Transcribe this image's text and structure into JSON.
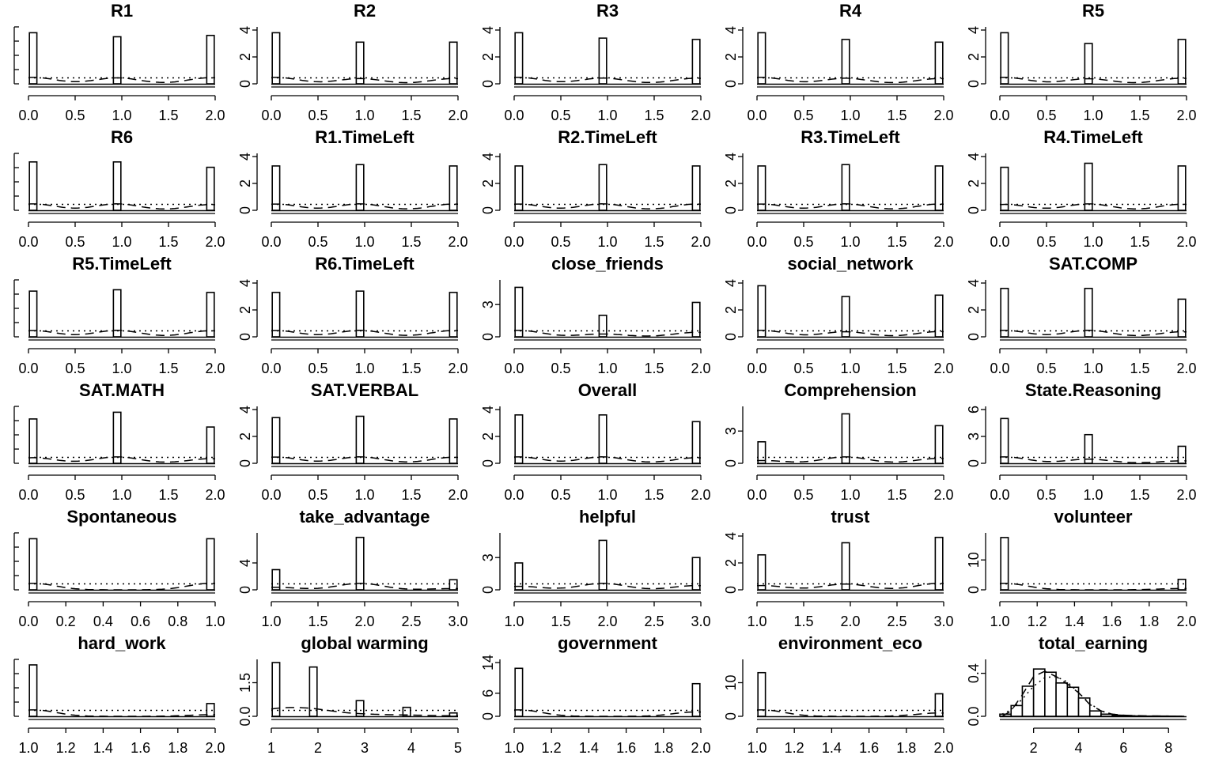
{
  "chart_data": [
    {
      "type": "histogram",
      "title": "R1",
      "x_ticks": [
        "0.0",
        "0.5",
        "1.0",
        "1.5",
        "2.0"
      ],
      "y_ticks": [],
      "xlim": [
        0,
        2
      ],
      "ylim": [
        0,
        4
      ],
      "bars": [
        {
          "x": 0.05,
          "h": 3.8
        },
        {
          "x": 0.95,
          "h": 3.5
        },
        {
          "x": 1.95,
          "h": 3.6
        }
      ]
    },
    {
      "type": "histogram",
      "title": "R2",
      "x_ticks": [
        "0.0",
        "0.5",
        "1.0",
        "1.5",
        "2.0"
      ],
      "y_ticks": [
        "0",
        "2",
        "4"
      ],
      "xlim": [
        0,
        2
      ],
      "ylim": [
        0,
        4
      ],
      "bars": [
        {
          "x": 0.05,
          "h": 3.8
        },
        {
          "x": 0.95,
          "h": 3.1
        },
        {
          "x": 1.95,
          "h": 3.1
        }
      ]
    },
    {
      "type": "histogram",
      "title": "R3",
      "x_ticks": [
        "0.0",
        "0.5",
        "1.0",
        "1.5",
        "2.0"
      ],
      "y_ticks": [
        "0",
        "2",
        "4"
      ],
      "xlim": [
        0,
        2
      ],
      "ylim": [
        0,
        4
      ],
      "bars": [
        {
          "x": 0.05,
          "h": 3.8
        },
        {
          "x": 0.95,
          "h": 3.4
        },
        {
          "x": 1.95,
          "h": 3.3
        }
      ]
    },
    {
      "type": "histogram",
      "title": "R4",
      "x_ticks": [
        "0.0",
        "0.5",
        "1.0",
        "1.5",
        "2.0"
      ],
      "y_ticks": [
        "0",
        "2",
        "4"
      ],
      "xlim": [
        0,
        2
      ],
      "ylim": [
        0,
        4
      ],
      "bars": [
        {
          "x": 0.05,
          "h": 3.8
        },
        {
          "x": 0.95,
          "h": 3.3
        },
        {
          "x": 1.95,
          "h": 3.1
        }
      ]
    },
    {
      "type": "histogram",
      "title": "R5",
      "x_ticks": [
        "0.0",
        "0.5",
        "1.0",
        "1.5",
        "2.0"
      ],
      "y_ticks": [
        "0",
        "2",
        "4"
      ],
      "xlim": [
        0,
        2
      ],
      "ylim": [
        0,
        4
      ],
      "bars": [
        {
          "x": 0.05,
          "h": 3.8
        },
        {
          "x": 0.95,
          "h": 3.0
        },
        {
          "x": 1.95,
          "h": 3.3
        }
      ]
    },
    {
      "type": "histogram",
      "title": "R6",
      "x_ticks": [
        "0.0",
        "0.5",
        "1.0",
        "1.5",
        "2.0"
      ],
      "y_ticks": [],
      "xlim": [
        0,
        2
      ],
      "ylim": [
        0,
        4
      ],
      "bars": [
        {
          "x": 0.05,
          "h": 3.6
        },
        {
          "x": 0.95,
          "h": 3.6
        },
        {
          "x": 1.95,
          "h": 3.2
        }
      ]
    },
    {
      "type": "histogram",
      "title": "R1.TimeLeft",
      "x_ticks": [
        "0.0",
        "0.5",
        "1.0",
        "1.5",
        "2.0"
      ],
      "y_ticks": [
        "0",
        "2",
        "4"
      ],
      "xlim": [
        0,
        2
      ],
      "ylim": [
        0,
        4
      ],
      "bars": [
        {
          "x": 0.05,
          "h": 3.3
        },
        {
          "x": 0.95,
          "h": 3.4
        },
        {
          "x": 1.95,
          "h": 3.3
        }
      ]
    },
    {
      "type": "histogram",
      "title": "R2.TimeLeft",
      "x_ticks": [
        "0.0",
        "0.5",
        "1.0",
        "1.5",
        "2.0"
      ],
      "y_ticks": [
        "0",
        "2",
        "4"
      ],
      "xlim": [
        0,
        2
      ],
      "ylim": [
        0,
        4
      ],
      "bars": [
        {
          "x": 0.05,
          "h": 3.3
        },
        {
          "x": 0.95,
          "h": 3.4
        },
        {
          "x": 1.95,
          "h": 3.3
        }
      ]
    },
    {
      "type": "histogram",
      "title": "R3.TimeLeft",
      "x_ticks": [
        "0.0",
        "0.5",
        "1.0",
        "1.5",
        "2.0"
      ],
      "y_ticks": [
        "0",
        "2",
        "4"
      ],
      "xlim": [
        0,
        2
      ],
      "ylim": [
        0,
        4
      ],
      "bars": [
        {
          "x": 0.05,
          "h": 3.3
        },
        {
          "x": 0.95,
          "h": 3.4
        },
        {
          "x": 1.95,
          "h": 3.3
        }
      ]
    },
    {
      "type": "histogram",
      "title": "R4.TimeLeft",
      "x_ticks": [
        "0.0",
        "0.5",
        "1.0",
        "1.5",
        "2.0"
      ],
      "y_ticks": [
        "0",
        "2",
        "4"
      ],
      "xlim": [
        0,
        2
      ],
      "ylim": [
        0,
        4
      ],
      "bars": [
        {
          "x": 0.05,
          "h": 3.2
        },
        {
          "x": 0.95,
          "h": 3.5
        },
        {
          "x": 1.95,
          "h": 3.3
        }
      ]
    },
    {
      "type": "histogram",
      "title": "R5.TimeLeft",
      "x_ticks": [
        "0.0",
        "0.5",
        "1.0",
        "1.5",
        "2.0"
      ],
      "y_ticks": [],
      "xlim": [
        0,
        2
      ],
      "ylim": [
        0,
        4
      ],
      "bars": [
        {
          "x": 0.05,
          "h": 3.4
        },
        {
          "x": 0.95,
          "h": 3.5
        },
        {
          "x": 1.95,
          "h": 3.3
        }
      ]
    },
    {
      "type": "histogram",
      "title": "R6.TimeLeft",
      "x_ticks": [
        "0.0",
        "0.5",
        "1.0",
        "1.5",
        "2.0"
      ],
      "y_ticks": [
        "0",
        "2",
        "4"
      ],
      "xlim": [
        0,
        2
      ],
      "ylim": [
        0,
        4
      ],
      "bars": [
        {
          "x": 0.05,
          "h": 3.3
        },
        {
          "x": 0.95,
          "h": 3.4
        },
        {
          "x": 1.95,
          "h": 3.3
        }
      ]
    },
    {
      "type": "histogram",
      "title": "close_friends",
      "x_ticks": [
        "0.0",
        "0.5",
        "1.0",
        "1.5",
        "2.0"
      ],
      "y_ticks": [
        "0",
        "3"
      ],
      "xlim": [
        0,
        2
      ],
      "ylim": [
        0,
        5
      ],
      "bars": [
        {
          "x": 0.05,
          "h": 4.6
        },
        {
          "x": 0.95,
          "h": 2.0
        },
        {
          "x": 1.95,
          "h": 3.2
        }
      ]
    },
    {
      "type": "histogram",
      "title": "social_network",
      "x_ticks": [
        "0.0",
        "0.5",
        "1.0",
        "1.5",
        "2.0"
      ],
      "y_ticks": [
        "0",
        "2",
        "4"
      ],
      "xlim": [
        0,
        2
      ],
      "ylim": [
        0,
        4
      ],
      "bars": [
        {
          "x": 0.05,
          "h": 3.8
        },
        {
          "x": 0.95,
          "h": 3.0
        },
        {
          "x": 1.95,
          "h": 3.1
        }
      ]
    },
    {
      "type": "histogram",
      "title": "SAT.COMP",
      "x_ticks": [
        "0.0",
        "0.5",
        "1.0",
        "1.5",
        "2.0"
      ],
      "y_ticks": [
        "0",
        "2",
        "4"
      ],
      "xlim": [
        0,
        2
      ],
      "ylim": [
        0,
        4
      ],
      "bars": [
        {
          "x": 0.05,
          "h": 3.6
        },
        {
          "x": 0.95,
          "h": 3.6
        },
        {
          "x": 1.95,
          "h": 2.8
        }
      ]
    },
    {
      "type": "histogram",
      "title": "SAT.MATH",
      "x_ticks": [
        "0.0",
        "0.5",
        "1.0",
        "1.5",
        "2.0"
      ],
      "y_ticks": [],
      "xlim": [
        0,
        2
      ],
      "ylim": [
        0,
        4
      ],
      "bars": [
        {
          "x": 0.05,
          "h": 3.3
        },
        {
          "x": 0.95,
          "h": 3.8
        },
        {
          "x": 1.95,
          "h": 2.7
        }
      ]
    },
    {
      "type": "histogram",
      "title": "SAT.VERBAL",
      "x_ticks": [
        "0.0",
        "0.5",
        "1.0",
        "1.5",
        "2.0"
      ],
      "y_ticks": [
        "0",
        "2",
        "4"
      ],
      "xlim": [
        0,
        2
      ],
      "ylim": [
        0,
        4
      ],
      "bars": [
        {
          "x": 0.05,
          "h": 3.4
        },
        {
          "x": 0.95,
          "h": 3.5
        },
        {
          "x": 1.95,
          "h": 3.3
        }
      ]
    },
    {
      "type": "histogram",
      "title": "Overall",
      "x_ticks": [
        "0.0",
        "0.5",
        "1.0",
        "1.5",
        "2.0"
      ],
      "y_ticks": [
        "0",
        "2",
        "4"
      ],
      "xlim": [
        0,
        2
      ],
      "ylim": [
        0,
        4
      ],
      "bars": [
        {
          "x": 0.05,
          "h": 3.6
        },
        {
          "x": 0.95,
          "h": 3.6
        },
        {
          "x": 1.95,
          "h": 3.1
        }
      ]
    },
    {
      "type": "histogram",
      "title": "Comprehension",
      "x_ticks": [
        "0.0",
        "0.5",
        "1.0",
        "1.5",
        "2.0"
      ],
      "y_ticks": [
        "0",
        "3"
      ],
      "xlim": [
        0,
        2
      ],
      "ylim": [
        0,
        5
      ],
      "bars": [
        {
          "x": 0.05,
          "h": 2.0
        },
        {
          "x": 0.95,
          "h": 4.6
        },
        {
          "x": 1.95,
          "h": 3.5
        }
      ]
    },
    {
      "type": "histogram",
      "title": "State.Reasoning",
      "x_ticks": [
        "0.0",
        "0.5",
        "1.0",
        "1.5",
        "2.0"
      ],
      "y_ticks": [
        "0",
        "3",
        "6"
      ],
      "xlim": [
        0,
        2
      ],
      "ylim": [
        0,
        6
      ],
      "bars": [
        {
          "x": 0.05,
          "h": 5.0
        },
        {
          "x": 0.95,
          "h": 3.2
        },
        {
          "x": 1.95,
          "h": 1.9
        }
      ]
    },
    {
      "type": "histogram",
      "title": "Spontaneous",
      "x_ticks": [
        "0.0",
        "0.2",
        "0.4",
        "0.6",
        "0.8",
        "1.0"
      ],
      "y_ticks": [],
      "xlim": [
        0,
        1
      ],
      "ylim": [
        0,
        8
      ],
      "bars": [
        {
          "x": 0.025,
          "h": 7.6
        },
        {
          "x": 0.975,
          "h": 7.6
        }
      ]
    },
    {
      "type": "histogram",
      "title": "take_advantage",
      "x_ticks": [
        "1.0",
        "1.5",
        "2.0",
        "2.5",
        "3.0"
      ],
      "y_ticks": [
        "0",
        "4"
      ],
      "xlim": [
        1,
        3
      ],
      "ylim": [
        0,
        8
      ],
      "bars": [
        {
          "x": 1.05,
          "h": 3.0
        },
        {
          "x": 1.95,
          "h": 7.8
        },
        {
          "x": 2.95,
          "h": 1.5
        }
      ]
    },
    {
      "type": "histogram",
      "title": "helpful",
      "x_ticks": [
        "1.0",
        "1.5",
        "2.0",
        "2.5",
        "3.0"
      ],
      "y_ticks": [
        "0",
        "3"
      ],
      "xlim": [
        1,
        3
      ],
      "ylim": [
        0,
        5
      ],
      "bars": [
        {
          "x": 1.05,
          "h": 2.5
        },
        {
          "x": 1.95,
          "h": 4.6
        },
        {
          "x": 2.95,
          "h": 3.0
        }
      ]
    },
    {
      "type": "histogram",
      "title": "trust",
      "x_ticks": [
        "1.0",
        "1.5",
        "2.0",
        "2.5",
        "3.0"
      ],
      "y_ticks": [
        "0",
        "2",
        "4"
      ],
      "xlim": [
        1,
        3
      ],
      "ylim": [
        0,
        4
      ],
      "bars": [
        {
          "x": 1.05,
          "h": 2.6
        },
        {
          "x": 1.95,
          "h": 3.5
        },
        {
          "x": 2.95,
          "h": 3.9
        }
      ]
    },
    {
      "type": "histogram",
      "title": "volunteer",
      "x_ticks": [
        "1.0",
        "1.2",
        "1.4",
        "1.6",
        "1.8",
        "2.0"
      ],
      "y_ticks": [
        "0",
        "10"
      ],
      "xlim": [
        1,
        2
      ],
      "ylim": [
        0,
        18
      ],
      "bars": [
        {
          "x": 1.025,
          "h": 17.5
        },
        {
          "x": 1.975,
          "h": 3.5
        }
      ]
    },
    {
      "type": "histogram",
      "title": "hard_work",
      "x_ticks": [
        "1.0",
        "1.2",
        "1.4",
        "1.6",
        "1.8",
        "2.0"
      ],
      "y_ticks": [],
      "xlim": [
        1,
        2
      ],
      "ylim": [
        0,
        16
      ],
      "bars": [
        {
          "x": 1.025,
          "h": 15.3
        },
        {
          "x": 1.975,
          "h": 3.8
        }
      ]
    },
    {
      "type": "histogram",
      "title": "global warming",
      "x_ticks": [
        "1",
        "2",
        "3",
        "4",
        "5"
      ],
      "y_ticks": [
        "0.0",
        "1.5"
      ],
      "xlim": [
        1,
        5
      ],
      "ylim": [
        0,
        2.4
      ],
      "bars": [
        {
          "x": 1.1,
          "h": 2.4
        },
        {
          "x": 1.9,
          "h": 2.2
        },
        {
          "x": 2.9,
          "h": 0.7
        },
        {
          "x": 3.9,
          "h": 0.4
        },
        {
          "x": 4.9,
          "h": 0.15
        }
      ]
    },
    {
      "type": "histogram",
      "title": "government",
      "x_ticks": [
        "1.0",
        "1.2",
        "1.4",
        "1.6",
        "1.8",
        "2.0"
      ],
      "y_ticks": [
        "0",
        "6",
        "14"
      ],
      "xlim": [
        1,
        2
      ],
      "ylim": [
        0,
        14
      ],
      "bars": [
        {
          "x": 1.025,
          "h": 12.5
        },
        {
          "x": 1.975,
          "h": 8.5
        }
      ]
    },
    {
      "type": "histogram",
      "title": "environment_eco",
      "x_ticks": [
        "1.0",
        "1.2",
        "1.4",
        "1.6",
        "1.8",
        "2.0"
      ],
      "y_ticks": [
        "0",
        "10"
      ],
      "xlim": [
        1,
        2
      ],
      "ylim": [
        0,
        16
      ],
      "bars": [
        {
          "x": 1.025,
          "h": 13.0
        },
        {
          "x": 1.975,
          "h": 6.7
        }
      ]
    },
    {
      "type": "histogram",
      "title": "total_earning",
      "x_ticks": [
        "2",
        "4",
        "6",
        "8"
      ],
      "y_ticks": [
        "0.0",
        "0.4"
      ],
      "xlim": [
        0.5,
        8.8
      ],
      "ylim": [
        0,
        0.5
      ],
      "binwidth": 0.5,
      "bars": [
        {
          "x": 0.75,
          "h": 0.02
        },
        {
          "x": 1.25,
          "h": 0.1
        },
        {
          "x": 1.75,
          "h": 0.28
        },
        {
          "x": 2.25,
          "h": 0.44
        },
        {
          "x": 2.75,
          "h": 0.41
        },
        {
          "x": 3.25,
          "h": 0.31
        },
        {
          "x": 3.75,
          "h": 0.27
        },
        {
          "x": 4.25,
          "h": 0.17
        },
        {
          "x": 4.75,
          "h": 0.05
        },
        {
          "x": 5.25,
          "h": 0.02
        },
        {
          "x": 5.75,
          "h": 0.01
        },
        {
          "x": 6.25,
          "h": 0.005
        },
        {
          "x": 6.75,
          "h": 0.003
        },
        {
          "x": 7.25,
          "h": 0.002
        },
        {
          "x": 7.75,
          "h": 0.002
        },
        {
          "x": 8.25,
          "h": 0.001
        }
      ],
      "density": [
        [
          0.6,
          0.0
        ],
        [
          1.0,
          0.05
        ],
        [
          1.5,
          0.2
        ],
        [
          2.0,
          0.37
        ],
        [
          2.5,
          0.42
        ],
        [
          3.0,
          0.37
        ],
        [
          3.5,
          0.3
        ],
        [
          4.0,
          0.22
        ],
        [
          4.5,
          0.11
        ],
        [
          5.0,
          0.05
        ],
        [
          5.5,
          0.02
        ],
        [
          6.0,
          0.01
        ],
        [
          7.0,
          0.004
        ],
        [
          8.0,
          0.002
        ],
        [
          8.7,
          0.0
        ]
      ],
      "normal": [
        [
          0.6,
          0.02
        ],
        [
          1.0,
          0.06
        ],
        [
          1.5,
          0.16
        ],
        [
          2.0,
          0.28
        ],
        [
          2.5,
          0.36
        ],
        [
          3.0,
          0.37
        ],
        [
          3.5,
          0.32
        ],
        [
          4.0,
          0.22
        ],
        [
          4.5,
          0.12
        ],
        [
          5.0,
          0.05
        ],
        [
          5.5,
          0.02
        ],
        [
          6.0,
          0.006
        ],
        [
          7.0,
          0.0
        ],
        [
          8.7,
          0.0
        ]
      ]
    }
  ]
}
